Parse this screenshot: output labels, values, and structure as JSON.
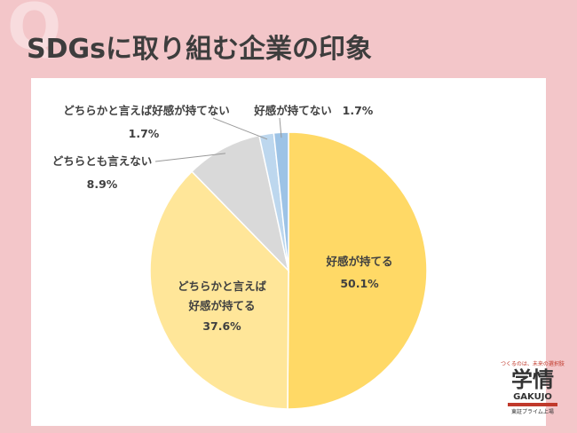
{
  "badge": "Q",
  "chart_data": {
    "type": "pie",
    "title": "SDGsに取り組む企業の印象",
    "categories": [
      "好感が持てる",
      "どちらかと言えば\n好感が持てる",
      "どちらとも言えない",
      "どちらかと言えば好感が持てない",
      "好感が持てない"
    ],
    "values": [
      50.1,
      37.6,
      8.9,
      1.7,
      1.7
    ],
    "value_labels": [
      "50.1%",
      "37.6%",
      "8.9%",
      "1.7%",
      "1.7%"
    ],
    "colors": [
      "#FFD966",
      "#FFE699",
      "#D9D9D9",
      "#BDD7EE",
      "#9DC3E6"
    ]
  },
  "logo": {
    "tagline": "つくるのは、未来の選択肢",
    "name": "学情",
    "roman": "GAKUJO",
    "note": "東証プライム上場"
  }
}
